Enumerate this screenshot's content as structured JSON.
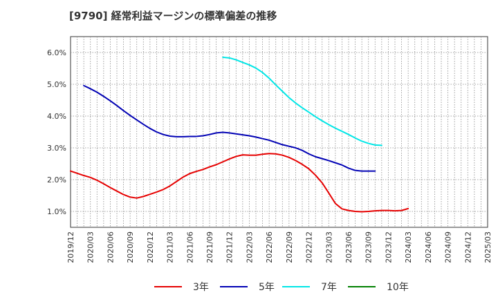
{
  "chart_data": {
    "type": "line",
    "title": "[9790]  経常利益マージンの標準偏差の推移",
    "xlabel": "",
    "ylabel": "",
    "ylim": [
      0.5,
      6.5
    ],
    "y_ticks": [
      "1.0%",
      "2.0%",
      "3.0%",
      "4.0%",
      "5.0%",
      "6.0%"
    ],
    "y_tick_values": [
      1.0,
      2.0,
      3.0,
      4.0,
      5.0,
      6.0
    ],
    "x_ticks": [
      "2019/12",
      "2020/03",
      "2020/06",
      "2020/09",
      "2020/12",
      "2021/03",
      "2021/06",
      "2021/09",
      "2021/12",
      "2022/03",
      "2022/06",
      "2022/09",
      "2022/12",
      "2023/03",
      "2023/06",
      "2023/09",
      "2023/12",
      "2024/03",
      "2024/06",
      "2024/09",
      "2024/12",
      "2025/03"
    ],
    "grid": true,
    "legend_position": "bottom",
    "series": [
      {
        "name": "3年",
        "color": "#e60000",
        "start": "2019/12",
        "values": [
          2.27,
          2.2,
          2.13,
          2.07,
          1.98,
          1.87,
          1.75,
          1.64,
          1.53,
          1.45,
          1.42,
          1.47,
          1.54,
          1.61,
          1.69,
          1.8,
          1.94,
          2.08,
          2.19,
          2.26,
          2.32,
          2.4,
          2.47,
          2.56,
          2.65,
          2.73,
          2.78,
          2.77,
          2.77,
          2.8,
          2.82,
          2.81,
          2.77,
          2.7,
          2.6,
          2.48,
          2.34,
          2.14,
          1.9,
          1.58,
          1.25,
          1.08,
          1.03,
          1.0,
          0.99,
          1.0,
          1.02,
          1.03,
          1.03,
          1.02,
          1.03,
          1.09
        ]
      },
      {
        "name": "5年",
        "color": "#0000b4",
        "start": "2019/12",
        "values": [
          null,
          null,
          4.96,
          4.86,
          4.75,
          4.62,
          4.48,
          4.33,
          4.17,
          4.02,
          3.88,
          3.74,
          3.61,
          3.5,
          3.42,
          3.37,
          3.35,
          3.35,
          3.36,
          3.36,
          3.38,
          3.42,
          3.47,
          3.49,
          3.47,
          3.44,
          3.41,
          3.38,
          3.34,
          3.29,
          3.24,
          3.17,
          3.1,
          3.05,
          3.0,
          2.92,
          2.81,
          2.72,
          2.66,
          2.6,
          2.53,
          2.46,
          2.36,
          2.29,
          2.27,
          2.27,
          2.27
        ]
      },
      {
        "name": "7年",
        "color": "#00e6e6",
        "start": "2019/12",
        "values": [
          null,
          null,
          null,
          null,
          null,
          null,
          null,
          null,
          null,
          null,
          null,
          null,
          null,
          null,
          null,
          null,
          null,
          null,
          null,
          null,
          null,
          null,
          null,
          5.85,
          5.83,
          5.77,
          5.69,
          5.61,
          5.51,
          5.37,
          5.19,
          4.98,
          4.78,
          4.58,
          4.41,
          4.26,
          4.12,
          3.98,
          3.85,
          3.73,
          3.62,
          3.52,
          3.42,
          3.31,
          3.21,
          3.14,
          3.09,
          3.08
        ]
      },
      {
        "name": "10年",
        "color": "#008000",
        "start": "2019/12",
        "values": []
      }
    ]
  }
}
